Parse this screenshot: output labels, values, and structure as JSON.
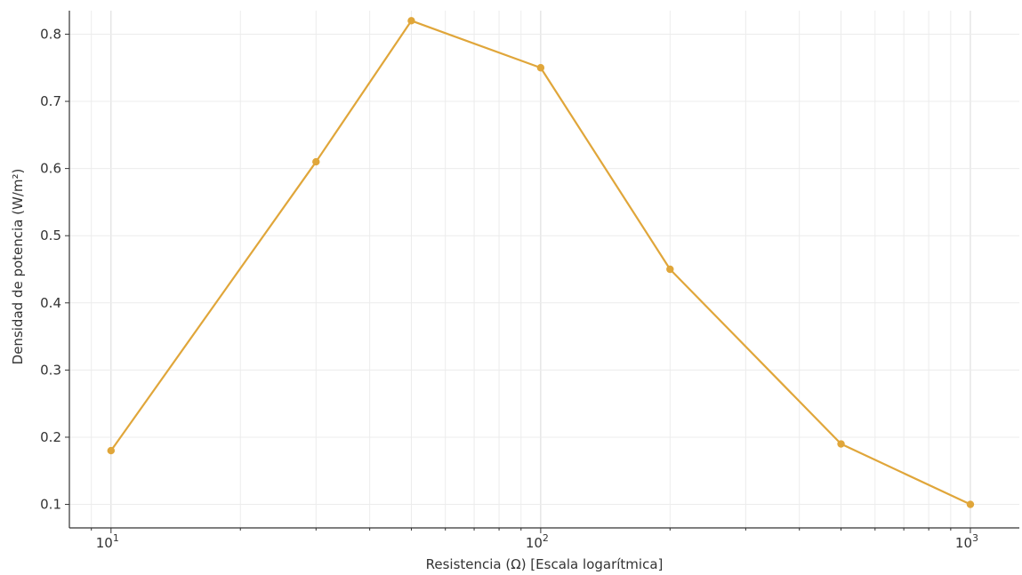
{
  "chart_data": {
    "type": "line",
    "title": "",
    "xlabel": "Resistencia (Ω) [Escala logarítmica]",
    "ylabel": "Densidad de potencia (W/m²)",
    "xscale": "log",
    "xlim": [
      8.0,
      1300
    ],
    "ylim": [
      0.065,
      0.835
    ],
    "grid": true,
    "legend": "none",
    "x_ticks": [
      {
        "value": 10,
        "base": "10",
        "exp": "1"
      },
      {
        "value": 100,
        "base": "10",
        "exp": "2"
      },
      {
        "value": 1000,
        "base": "10",
        "exp": "3"
      }
    ],
    "y_ticks": [
      {
        "value": 0.1,
        "label": "0.1"
      },
      {
        "value": 0.2,
        "label": "0.2"
      },
      {
        "value": 0.3,
        "label": "0.3"
      },
      {
        "value": 0.4,
        "label": "0.4"
      },
      {
        "value": 0.5,
        "label": "0.5"
      },
      {
        "value": 0.6,
        "label": "0.6"
      },
      {
        "value": 0.7,
        "label": "0.7"
      },
      {
        "value": 0.8,
        "label": "0.8"
      }
    ],
    "series": [
      {
        "color": "#e0a63a",
        "x": [
          10,
          30,
          50,
          100,
          200,
          500,
          1000
        ],
        "y": [
          0.18,
          0.61,
          0.82,
          0.75,
          0.45,
          0.19,
          0.1
        ]
      }
    ]
  }
}
